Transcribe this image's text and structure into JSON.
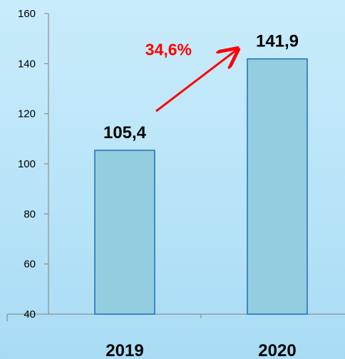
{
  "chart_data": {
    "type": "bar",
    "categories": [
      "2019",
      "2020"
    ],
    "values": [
      105.4,
      141.9
    ],
    "value_labels": [
      "105,4",
      "141,9"
    ],
    "ylim": [
      40,
      160
    ],
    "yticks": [
      40,
      60,
      80,
      100,
      120,
      140,
      160
    ],
    "grid": false,
    "legend": "none",
    "title": "",
    "xlabel": "",
    "ylabel": "",
    "annotation": {
      "text": "34,6%",
      "color": "#ff0000",
      "arrow_color": "#ff0000",
      "from_category": "2019",
      "to_category": "2020"
    },
    "colors": {
      "bar_fill": "#93cddf",
      "bar_stroke": "#1f6fb4",
      "axis": "#7f7f7f"
    }
  }
}
